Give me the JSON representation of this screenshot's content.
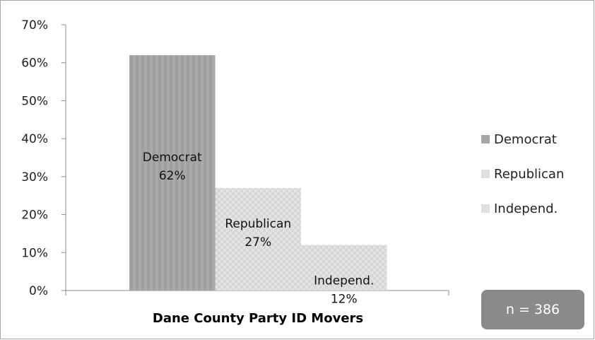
{
  "chart_data": {
    "type": "bar",
    "xlabel": "Dane County Party ID Movers",
    "ylabel": "",
    "ylim": [
      0,
      0.7
    ],
    "y_tick_values": [
      0,
      0.1,
      0.2,
      0.3,
      0.4,
      0.5,
      0.6,
      0.7
    ],
    "y_tick_labels": [
      "0%",
      "10%",
      "20%",
      "30%",
      "40%",
      "50%",
      "60%",
      "70%"
    ],
    "grid": false,
    "legend_position": "right",
    "categories": [
      "Democrat",
      "Republican",
      "Independ."
    ],
    "values": [
      0.62,
      0.27,
      0.12
    ],
    "data_labels": [
      "62%",
      "27%",
      "12%"
    ],
    "colors": [
      "#a6a6a6",
      "#dcdcdc",
      "#dcdcdc"
    ],
    "legend": [
      "Democrat",
      "Republican",
      "Independ."
    ]
  },
  "annotation": {
    "text": "n = 386"
  }
}
